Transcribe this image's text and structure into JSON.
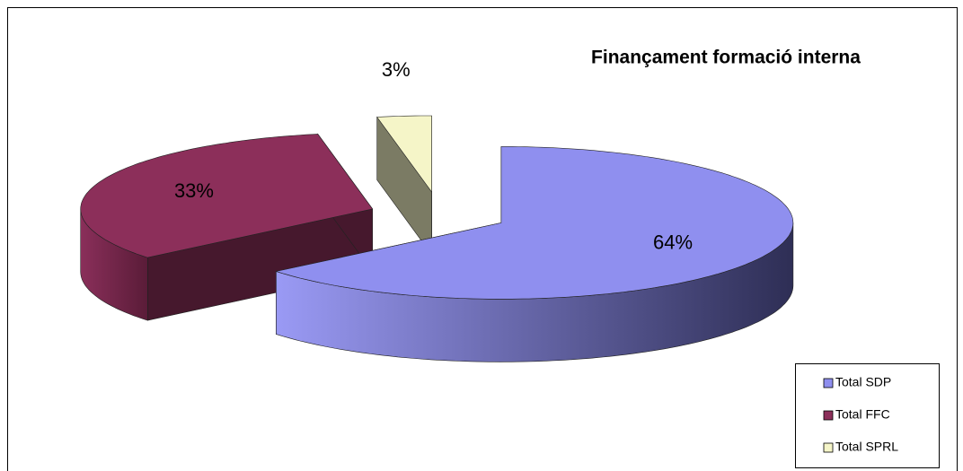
{
  "chart_data": {
    "type": "pie3d",
    "title": "Finançament formació interna",
    "categories": [
      "Total SDP",
      "Total FFC",
      "Total SPRL"
    ],
    "values": [
      64,
      33,
      3
    ],
    "value_labels": [
      "64%",
      "33%",
      "3%"
    ],
    "colors": [
      "#8f8fef",
      "#8c2f5a",
      "#f5f5c8"
    ],
    "legend": "bottom-right"
  }
}
